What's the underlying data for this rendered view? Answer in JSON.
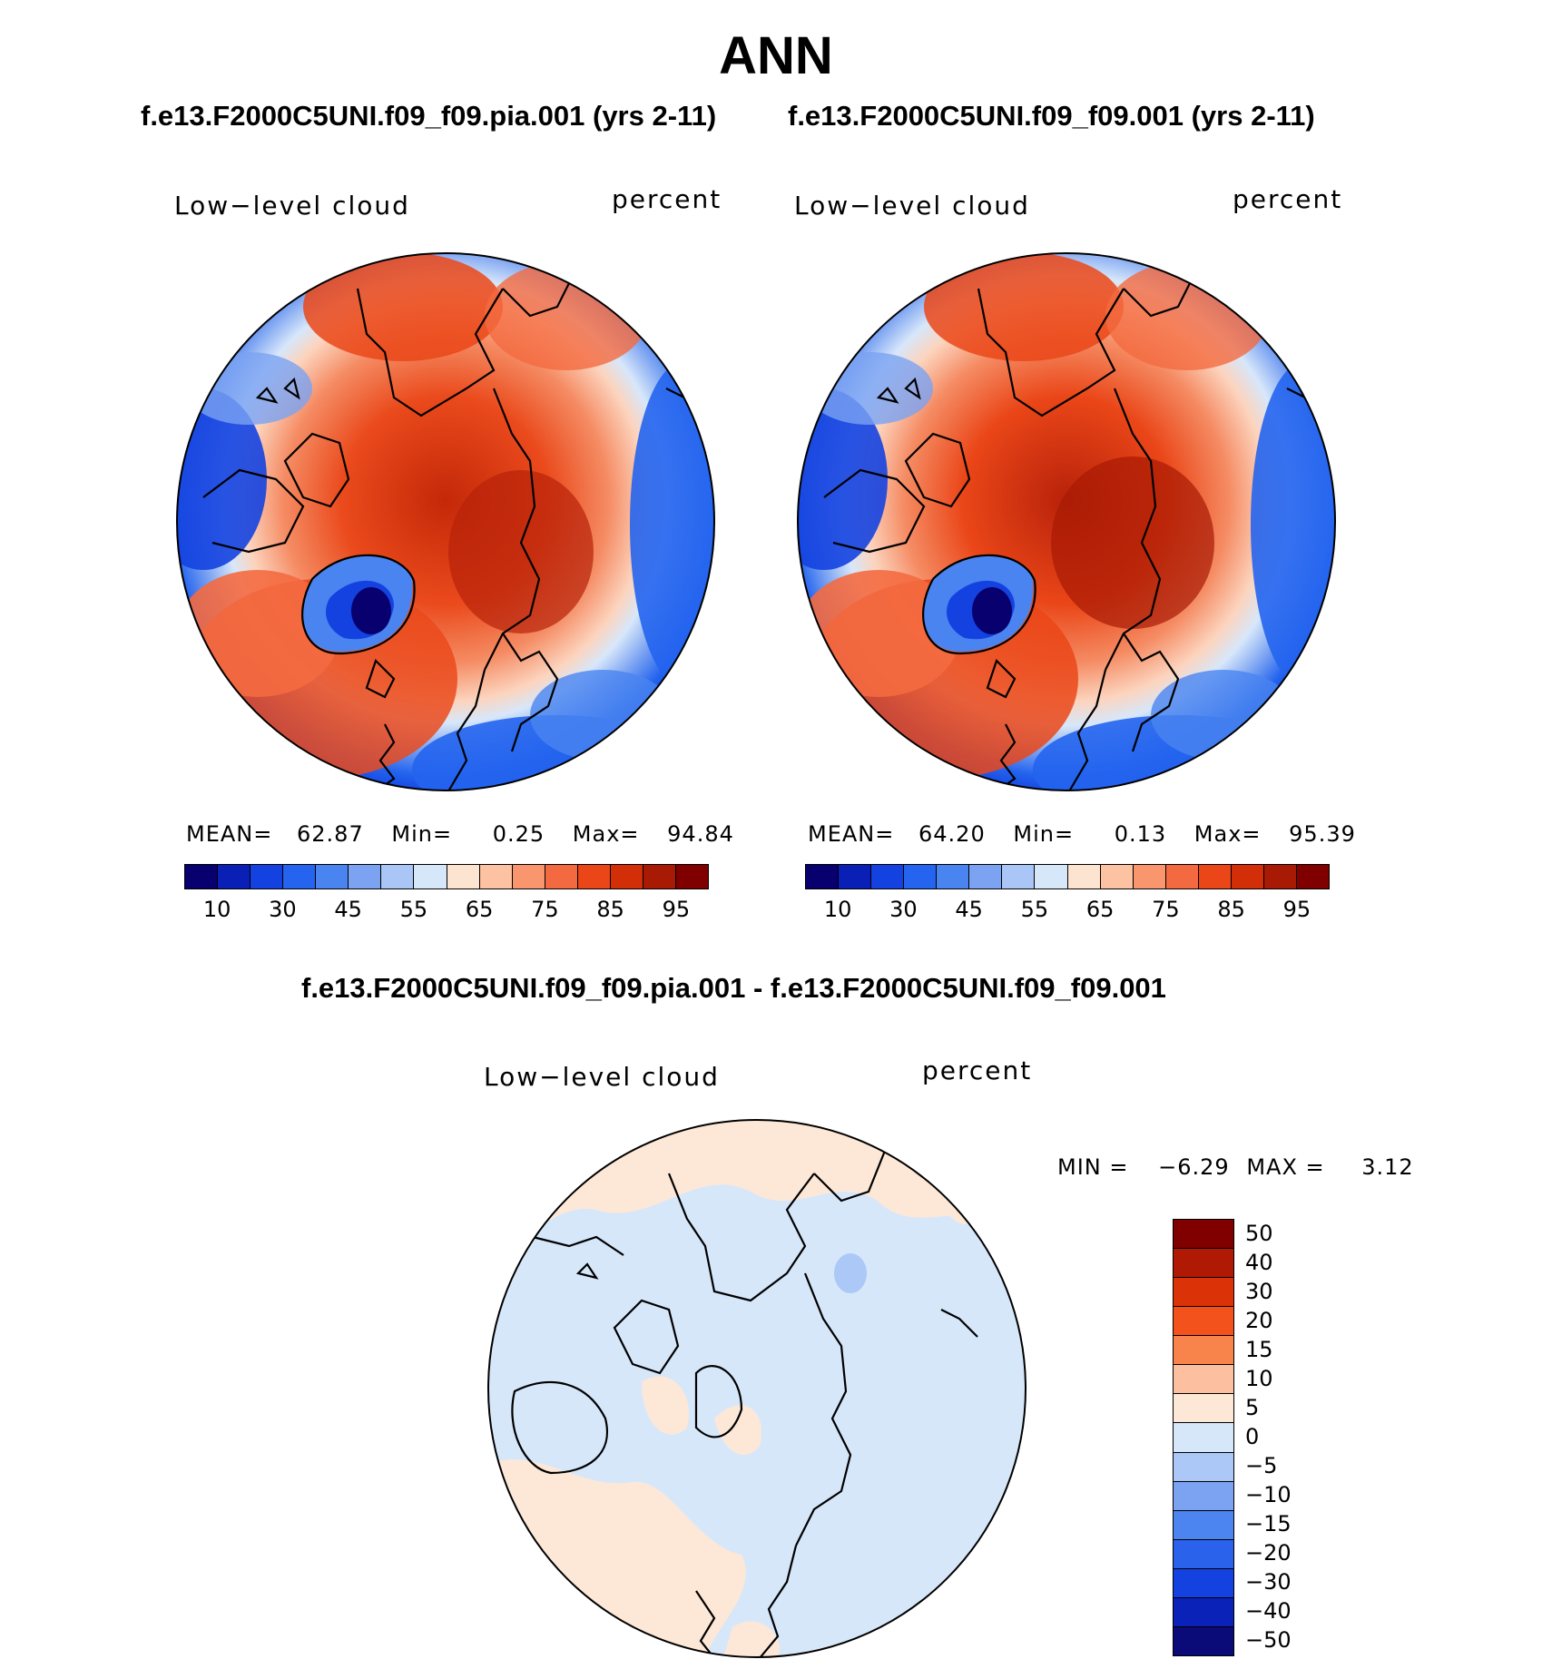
{
  "title": "ANN",
  "panels": {
    "left": {
      "subtitle": "f.e13.F2000C5UNI.f09_f09.pia.001 (yrs 2-11)",
      "variable": "Low−level cloud",
      "units": "percent",
      "stats": {
        "mean_label": "MEAN=",
        "mean": "62.87",
        "min_label": "Min=",
        "min": "0.25",
        "max_label": "Max=",
        "max": "94.84"
      }
    },
    "right": {
      "subtitle": "f.e13.F2000C5UNI.f09_f09.001 (yrs 2-11)",
      "variable": "Low−level cloud",
      "units": "percent",
      "stats": {
        "mean_label": "MEAN=",
        "mean": "64.20",
        "min_label": "Min=",
        "min": "0.13",
        "max_label": "Max=",
        "max": "95.39"
      }
    },
    "diff": {
      "subtitle": "f.e13.F2000C5UNI.f09_f09.pia.001 - f.e13.F2000C5UNI.f09_f09.001",
      "variable": "Low−level cloud",
      "units": "percent",
      "stats": {
        "min_label": "MIN =",
        "min": "−6.29",
        "max_label": "MAX =",
        "max": "3.12"
      }
    }
  },
  "colorbar_abs": {
    "colors": [
      "#08006e",
      "#0a1fb5",
      "#1442e0",
      "#2464ee",
      "#4a84f0",
      "#7ba3f2",
      "#a9c6f6",
      "#d7e7fa",
      "#fde4d0",
      "#fcc2a2",
      "#f9966e",
      "#f46a40",
      "#ea4618",
      "#d22e08",
      "#a81a04",
      "#800000"
    ],
    "ticks": [
      "10",
      "30",
      "45",
      "55",
      "65",
      "75",
      "85",
      "95"
    ]
  },
  "colorbar_diff": {
    "colors": [
      "#800000",
      "#b01a04",
      "#dc3208",
      "#f4521c",
      "#f8844c",
      "#fcc0a0",
      "#fde8d8",
      "#d7e7fa",
      "#abc8f6",
      "#7ca3f2",
      "#4c84f0",
      "#2a62ec",
      "#1442e0",
      "#0a22b8",
      "#0a0a78"
    ],
    "ticks": [
      "50",
      "40",
      "30",
      "20",
      "15",
      "10",
      "5",
      "0",
      "−5",
      "−10",
      "−15",
      "−20",
      "−30",
      "−40",
      "−50"
    ]
  }
}
